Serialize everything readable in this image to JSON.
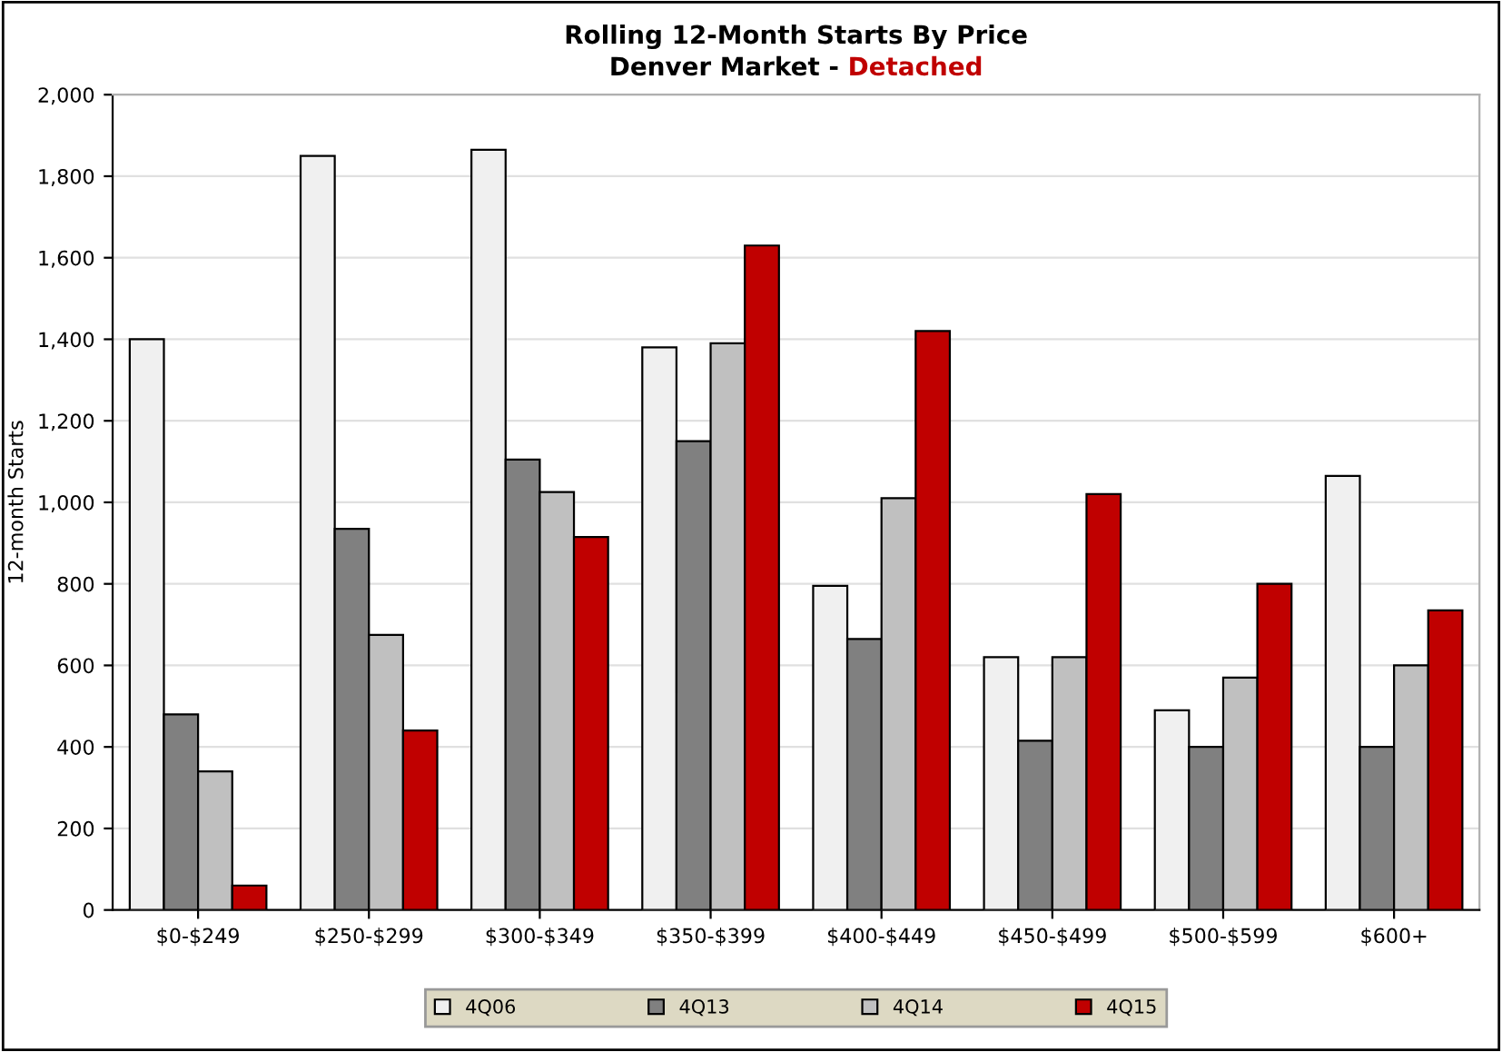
{
  "chart_data": {
    "type": "bar",
    "title": "Rolling 12-Month Starts By Price",
    "subtitle": "Denver Market - Detached",
    "ylabel": "12-month Starts",
    "categories": [
      "$0-$249",
      "$250-$299",
      "$300-$349",
      "$350-$399",
      "$400-$449",
      "$450-$499",
      "$500-$599",
      "$600+"
    ],
    "series": [
      {
        "name": "4Q06",
        "color": "#f0f0f0",
        "values": [
          1400,
          1850,
          1865,
          1380,
          795,
          620,
          490,
          1065
        ]
      },
      {
        "name": "4Q13",
        "color": "#808080",
        "values": [
          480,
          935,
          1105,
          1150,
          665,
          415,
          400,
          400
        ]
      },
      {
        "name": "4Q14",
        "color": "#c0c0c0",
        "values": [
          340,
          675,
          1025,
          1390,
          1010,
          620,
          570,
          600
        ]
      },
      {
        "name": "4Q15",
        "color": "#c00000",
        "values": [
          60,
          440,
          915,
          1630,
          1420,
          1020,
          800,
          735
        ]
      }
    ],
    "ylim": [
      0,
      2000
    ],
    "yticks": [
      {
        "value": 0,
        "label": "0"
      },
      {
        "value": 200,
        "label": "200"
      },
      {
        "value": 400,
        "label": "400"
      },
      {
        "value": 600,
        "label": "600"
      },
      {
        "value": 800,
        "label": "800"
      },
      {
        "value": 1000,
        "label": "1,000"
      },
      {
        "value": 1200,
        "label": "1,200"
      },
      {
        "value": 1400,
        "label": "1,400"
      },
      {
        "value": 1600,
        "label": "1,600"
      },
      {
        "value": 1800,
        "label": "1,800"
      },
      {
        "value": 2000,
        "label": "2,000"
      }
    ],
    "grid": "y",
    "legend": "bottom"
  }
}
